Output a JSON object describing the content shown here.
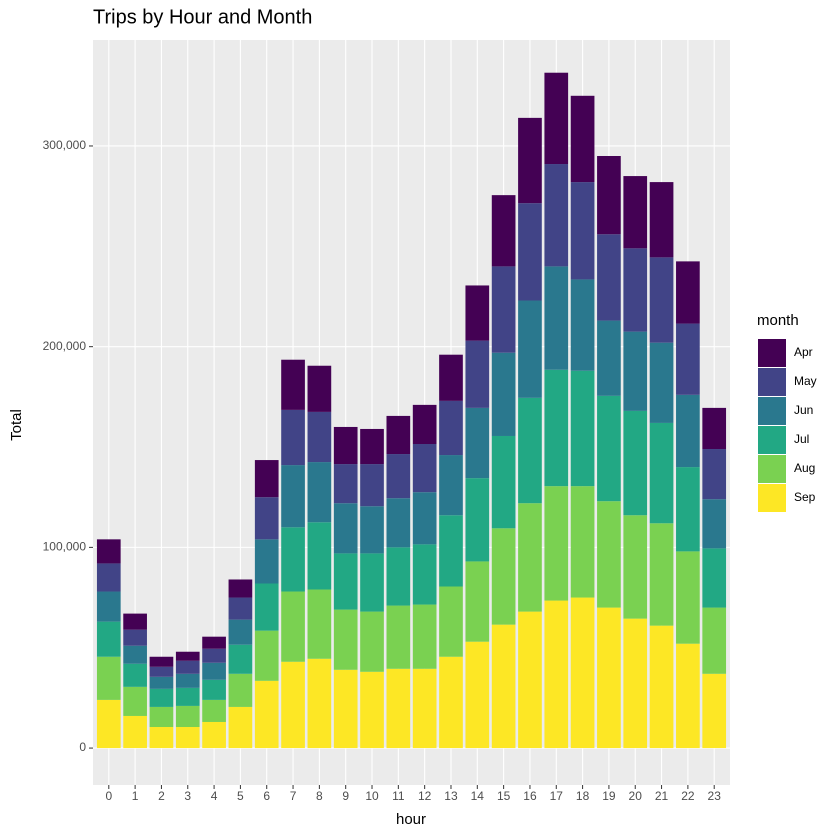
{
  "chart_data": {
    "type": "stacked_bar",
    "title": "Trips by Hour and Month",
    "x_label": "hour",
    "y_label": "Total",
    "legend_title": "month",
    "categories": [
      "0",
      "1",
      "2",
      "3",
      "4",
      "5",
      "6",
      "7",
      "8",
      "9",
      "10",
      "11",
      "12",
      "13",
      "14",
      "15",
      "16",
      "17",
      "18",
      "19",
      "20",
      "21",
      "22",
      "23"
    ],
    "series": [
      {
        "name": "Apr",
        "color": "#440154",
        "values": [
          12000,
          8000,
          5000,
          4500,
          6000,
          9000,
          18500,
          25000,
          23000,
          18500,
          17500,
          19000,
          19500,
          23000,
          27500,
          35500,
          42500,
          45500,
          43000,
          39000,
          36000,
          37500,
          31000,
          20500
        ]
      },
      {
        "name": "May",
        "color": "#414487",
        "values": [
          14000,
          8000,
          5000,
          6500,
          7000,
          11000,
          21000,
          27500,
          25000,
          19500,
          21000,
          22000,
          24000,
          27000,
          33500,
          43000,
          48500,
          51000,
          48500,
          43000,
          41500,
          42500,
          35500,
          25000
        ]
      },
      {
        "name": "Jun",
        "color": "#2a788e",
        "values": [
          15000,
          9000,
          6000,
          7000,
          8500,
          12500,
          22000,
          31000,
          30000,
          25000,
          23500,
          24500,
          26000,
          30000,
          35000,
          41500,
          48500,
          51500,
          45500,
          37500,
          39500,
          40000,
          36000,
          24500
        ]
      },
      {
        "name": "Jul",
        "color": "#22a884",
        "values": [
          17500,
          11500,
          9000,
          9000,
          10000,
          14500,
          23500,
          32000,
          33500,
          28000,
          29000,
          29000,
          30000,
          35500,
          41500,
          46000,
          52500,
          58000,
          57500,
          52500,
          52000,
          50000,
          42000,
          29500
        ]
      },
      {
        "name": "Aug",
        "color": "#7ad151",
        "values": [
          21500,
          14500,
          10000,
          10500,
          11000,
          16500,
          25000,
          35000,
          34500,
          30000,
          30000,
          31500,
          32000,
          35000,
          40000,
          48000,
          54000,
          57000,
          55500,
          53000,
          51500,
          51000,
          46000,
          33000
        ]
      },
      {
        "name": "Sep",
        "color": "#fde725",
        "values": [
          24000,
          16000,
          10500,
          10500,
          13000,
          20500,
          33500,
          43000,
          44500,
          39000,
          38000,
          39500,
          39500,
          45500,
          53000,
          61500,
          68000,
          73500,
          75000,
          70000,
          64500,
          61000,
          52000,
          37000
        ]
      }
    ],
    "ylim": [
      -18400,
      352800
    ],
    "yticks": [
      0,
      {
        "value": 100000,
        "label": "100,000"
      },
      {
        "value": 200000,
        "label": "200,000"
      },
      {
        "value": 300000,
        "label": "300,000"
      }
    ],
    "grid": true,
    "legend_position": "right"
  }
}
